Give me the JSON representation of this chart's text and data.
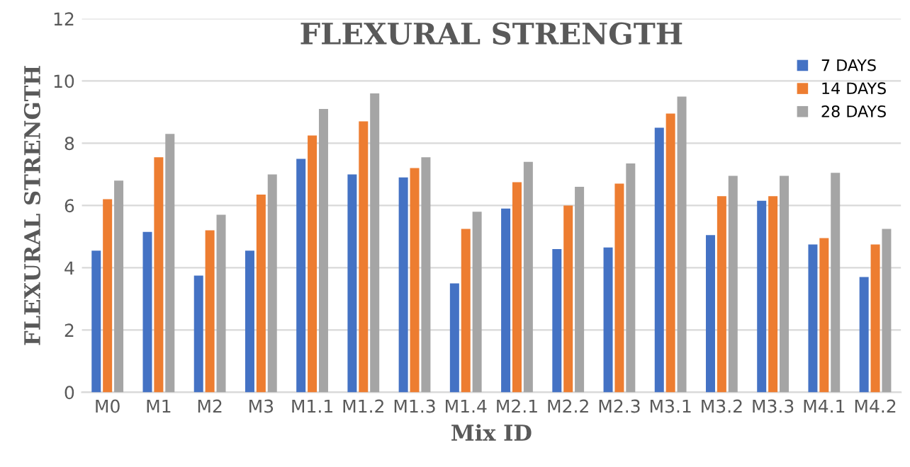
{
  "chart_data": {
    "type": "bar",
    "title": "FLEXURAL STRENGTH",
    "xlabel": "Mix ID",
    "ylabel": "FLEXURAL STRENGTH",
    "categories": [
      "M0",
      "M1",
      "M2",
      "M3",
      "M1.1",
      "M1.2",
      "M1.3",
      "M1.4",
      "M2.1",
      "M2.2",
      "M2.3",
      "M3.1",
      "M3.2",
      "M3.3",
      "M4.1",
      "M4.2"
    ],
    "series": [
      {
        "name": "7 DAYS",
        "color": "#4472c4",
        "values": [
          4.55,
          5.15,
          3.75,
          4.55,
          7.5,
          7.0,
          6.9,
          3.5,
          5.9,
          4.6,
          4.65,
          8.5,
          5.05,
          6.15,
          4.75,
          3.7
        ]
      },
      {
        "name": "14 DAYS",
        "color": "#ed7d31",
        "values": [
          6.2,
          7.55,
          5.2,
          6.35,
          8.25,
          8.7,
          7.2,
          5.25,
          6.75,
          6.0,
          6.7,
          8.95,
          6.3,
          6.3,
          4.95,
          4.75
        ]
      },
      {
        "name": "28 DAYS",
        "color": "#a5a5a5",
        "values": [
          6.8,
          8.3,
          5.7,
          7.0,
          9.1,
          9.6,
          7.55,
          5.8,
          7.4,
          6.6,
          7.35,
          9.5,
          6.95,
          6.95,
          7.05,
          5.25
        ]
      }
    ],
    "ylim": [
      0,
      12
    ],
    "yticks": [
      0,
      2,
      4,
      6,
      8,
      10,
      12
    ],
    "grid": "y",
    "legend": "top right"
  }
}
